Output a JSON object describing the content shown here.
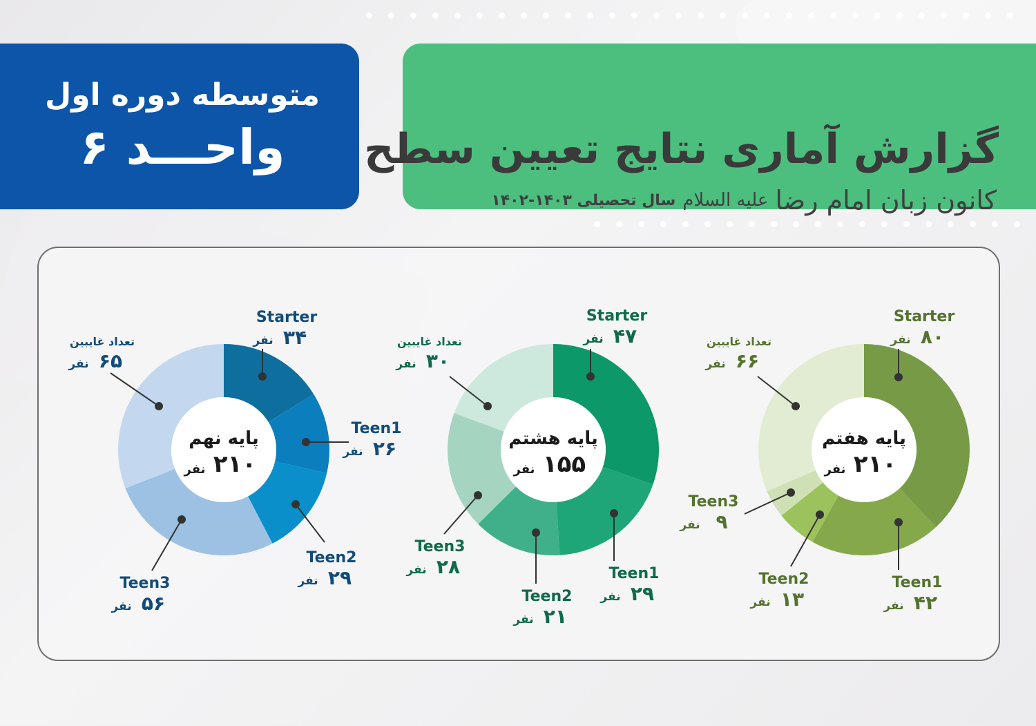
{
  "header": {
    "title": "گزارش آماری نتایج تعیین سطح",
    "subtitle": "کانون زبان امام رضا",
    "greeting": "عليه السلام",
    "year_label": "سال تحصیلی ۱۴۰۳-۱۴۰۲"
  },
  "unit_box": {
    "line1": "متوسطه دوره اول",
    "line2": "واحـــد ۶"
  },
  "colors": {
    "green_header": "#4cbf7f",
    "blue_header": "#0d55a8",
    "panel_border": "#6f6f6f"
  },
  "chart_data": [
    {
      "type": "pie",
      "donut": true,
      "center_title": "پایه نهم",
      "center_total": "۲۱۰",
      "unit": "نفر",
      "categories": [
        "Starter",
        "Teen1",
        "Teen2",
        "Teen3",
        "تعداد غایبین"
      ],
      "values": [
        34,
        26,
        29,
        56,
        65
      ],
      "value_labels": [
        "۳۴",
        "۲۶",
        "۲۹",
        "۵۶",
        "۶۵"
      ],
      "colors": [
        "#0e6f9e",
        "#0b7fbd",
        "#0a8fcb",
        "#9dc1e2",
        "#c3d8ee"
      ],
      "label_color": "#134b78"
    },
    {
      "type": "pie",
      "donut": true,
      "center_title": "پایه هشتم",
      "center_total": "۱۵۵",
      "unit": "نفر",
      "categories": [
        "Starter",
        "Teen1",
        "Teen2",
        "Teen3",
        "تعداد غایبین"
      ],
      "values": [
        47,
        29,
        21,
        28,
        30
      ],
      "value_labels": [
        "۴۷",
        "۲۹",
        "۲۱",
        "۲۸",
        "۳۰"
      ],
      "colors": [
        "#0c9868",
        "#1fa678",
        "#3fb08a",
        "#a5d5c0",
        "#cde8dc"
      ],
      "label_color": "#0f6a4c"
    },
    {
      "type": "pie",
      "donut": true,
      "center_title": "پایه هفتم",
      "center_total": "۲۱۰",
      "unit": "نفر",
      "categories": [
        "Starter",
        "Teen1",
        "Teen2",
        "Teen3",
        "تعداد غایبین"
      ],
      "values": [
        80,
        42,
        13,
        9,
        66
      ],
      "value_labels": [
        "۸۰",
        "۴۲",
        "۱۳",
        "۹",
        "۶۶"
      ],
      "colors": [
        "#769a46",
        "#85a84b",
        "#9cc25d",
        "#cfe0b5",
        "#e2ecd2"
      ],
      "label_color": "#55722f"
    }
  ]
}
